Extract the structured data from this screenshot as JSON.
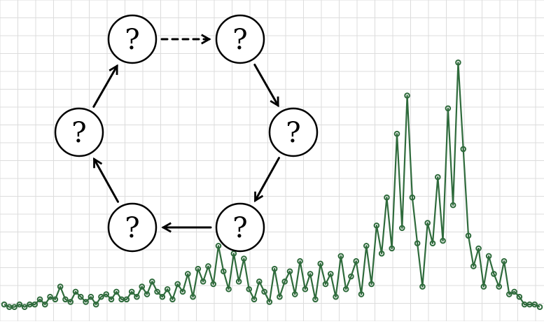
{
  "chart_data": {
    "type": "line",
    "title": "",
    "xlabel": "",
    "ylabel": "",
    "grid": true,
    "ylim": [
      0,
      100
    ],
    "series": [
      {
        "color": "#2f6b3c",
        "values": [
          3,
          2,
          2,
          3,
          2,
          3,
          3,
          5,
          3,
          6,
          5,
          10,
          5,
          4,
          8,
          6,
          4,
          6,
          3,
          6,
          7,
          5,
          8,
          5,
          5,
          8,
          6,
          10,
          7,
          12,
          8,
          6,
          9,
          5,
          11,
          8,
          15,
          6,
          17,
          12,
          18,
          11,
          26,
          16,
          9,
          23,
          12,
          21,
          9,
          5,
          12,
          8,
          4,
          17,
          6,
          12,
          16,
          7,
          20,
          9,
          15,
          5,
          19,
          11,
          15,
          6,
          22,
          9,
          14,
          20,
          7,
          26,
          11,
          34,
          23,
          45,
          25,
          70,
          33,
          85,
          45,
          27,
          10,
          35,
          27,
          53,
          28,
          80,
          42,
          98,
          64,
          30,
          18,
          25,
          10,
          22,
          15,
          10,
          20,
          7,
          8,
          6,
          3,
          3,
          3,
          2
        ]
      }
    ]
  },
  "diagram": {
    "node_label": "?",
    "colors": {
      "grid": "#dcdcdc",
      "line": "#2f6b3c",
      "node_stroke": "#000000",
      "arrow": "#000000"
    },
    "nodes": [
      {
        "id": "top-left",
        "label": "?"
      },
      {
        "id": "top-right",
        "label": "?"
      },
      {
        "id": "right",
        "label": "?"
      },
      {
        "id": "bottom-right",
        "label": "?"
      },
      {
        "id": "bottom-left",
        "label": "?"
      },
      {
        "id": "left",
        "label": "?"
      }
    ],
    "edges": [
      {
        "from": "top-left",
        "to": "top-right",
        "style": "dashed"
      },
      {
        "from": "top-right",
        "to": "right",
        "style": "solid"
      },
      {
        "from": "right",
        "to": "bottom-right",
        "style": "solid"
      },
      {
        "from": "bottom-right",
        "to": "bottom-left",
        "style": "solid"
      },
      {
        "from": "bottom-left",
        "to": "left",
        "style": "solid"
      },
      {
        "from": "left",
        "to": "top-left",
        "style": "solid"
      }
    ]
  }
}
